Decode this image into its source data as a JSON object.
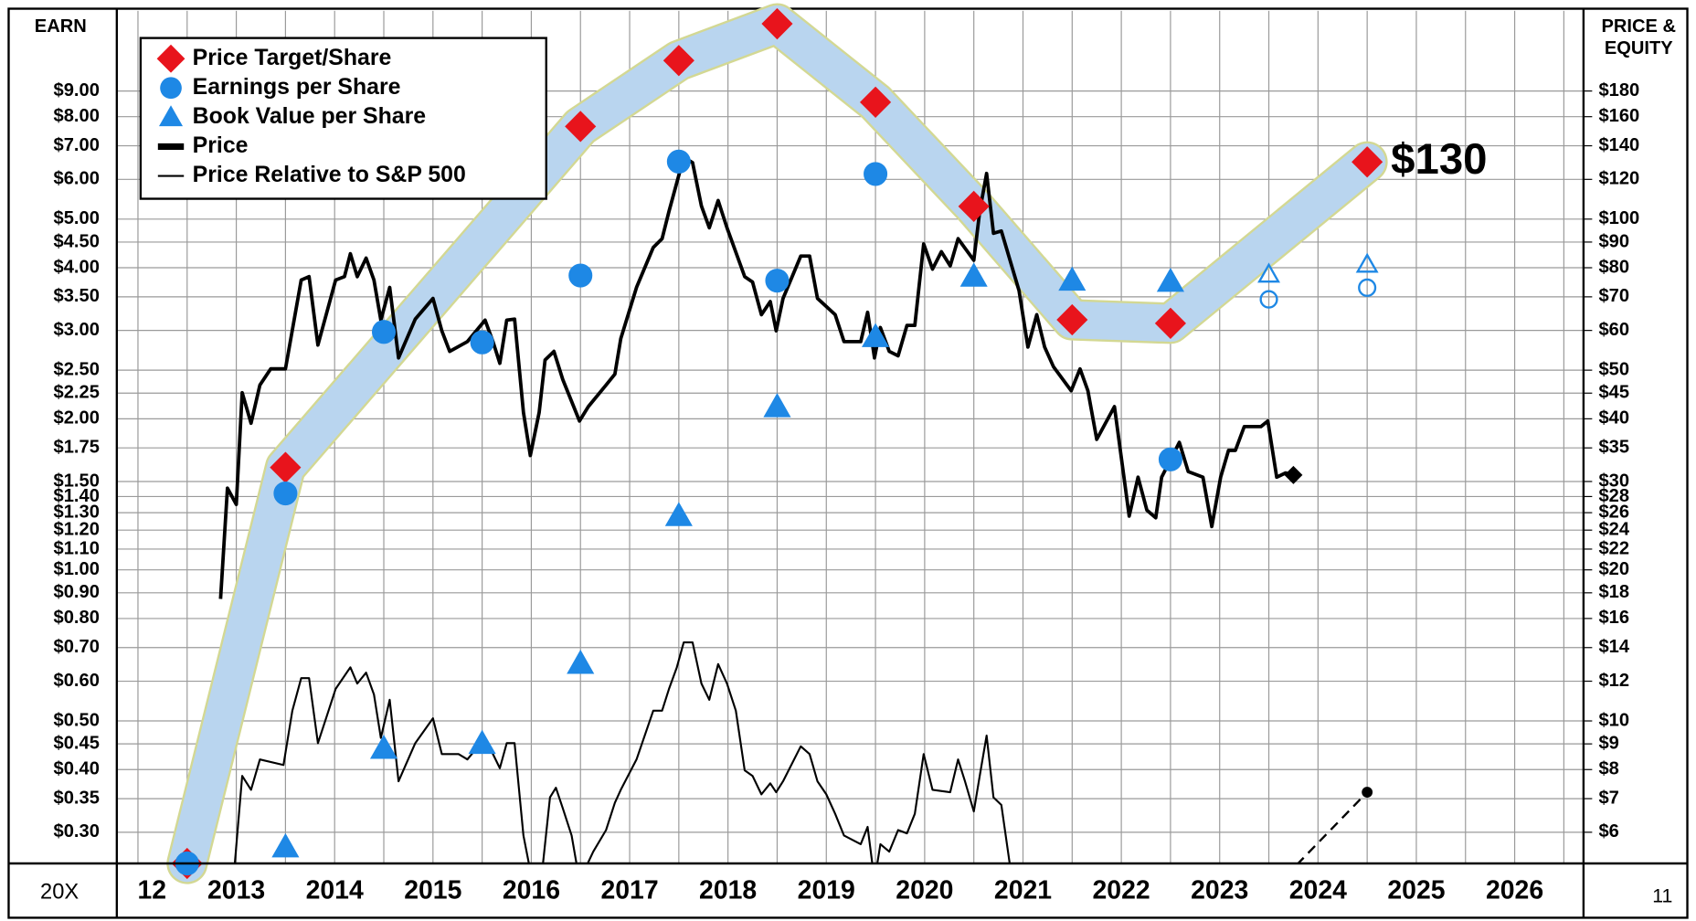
{
  "chart_data": {
    "type": "line",
    "left_axis_label": "EARN",
    "right_axis_label": [
      "PRICE &",
      "EQUITY"
    ],
    "corner_labels": [
      "20X",
      "11"
    ],
    "log_scale": true,
    "grid": true,
    "legend": "top-left",
    "xlim": [
      2012.285,
      2027.2
    ],
    "xticks": [
      2012.5,
      2013,
      2013.5,
      2014,
      2014.5,
      2015,
      2015.5,
      2016,
      2016.5,
      2017,
      2017.5,
      2018,
      2018.5,
      2019,
      2019.5,
      2020,
      2020.5,
      2021,
      2021.5,
      2022,
      2022.5,
      2023,
      2023.5,
      2024,
      2024.5,
      2025,
      2025.5,
      2026,
      2026.5,
      2027
    ],
    "x_labels": [
      "12",
      "2013",
      "2014",
      "2015",
      "2016",
      "2017",
      "2018",
      "2019",
      "2020",
      "2021",
      "2022",
      "2023",
      "2024",
      "2025",
      "2026"
    ],
    "ylim": [
      0.26,
      13
    ],
    "yticks": [
      {
        "value": 9,
        "label": "$9.00"
      },
      {
        "value": 8,
        "label": "$8.00"
      },
      {
        "value": 7,
        "label": "$7.00"
      },
      {
        "value": 6,
        "label": "$6.00"
      },
      {
        "value": 5,
        "label": "$5.00"
      },
      {
        "value": 4.5,
        "label": "$4.50"
      },
      {
        "value": 4,
        "label": "$4.00"
      },
      {
        "value": 3.5,
        "label": "$3.50"
      },
      {
        "value": 3,
        "label": "$3.00"
      },
      {
        "value": 2.5,
        "label": "$2.50"
      },
      {
        "value": 2.25,
        "label": "$2.25"
      },
      {
        "value": 2,
        "label": "$2.00"
      },
      {
        "value": 1.75,
        "label": "$1.75"
      },
      {
        "value": 1.5,
        "label": "$1.50"
      },
      {
        "value": 1.4,
        "label": "$1.40"
      },
      {
        "value": 1.3,
        "label": "$1.30"
      },
      {
        "value": 1.2,
        "label": "$1.20"
      },
      {
        "value": 1.1,
        "label": "$1.10"
      },
      {
        "value": 1,
        "label": "$1.00"
      },
      {
        "value": 0.9,
        "label": "$0.90"
      },
      {
        "value": 0.8,
        "label": "$0.80"
      },
      {
        "value": 0.7,
        "label": "$0.70"
      },
      {
        "value": 0.6,
        "label": "$0.60"
      },
      {
        "value": 0.5,
        "label": "$0.50"
      },
      {
        "value": 0.45,
        "label": "$0.45"
      },
      {
        "value": 0.4,
        "label": "$0.40"
      },
      {
        "value": 0.35,
        "label": "$0.35"
      },
      {
        "value": 0.3,
        "label": "$0.30"
      }
    ],
    "y2lim": [
      5.2,
      260
    ],
    "y2ticks": [
      {
        "value": 180,
        "label": "$180"
      },
      {
        "value": 160,
        "label": "$160"
      },
      {
        "value": 140,
        "label": "$140"
      },
      {
        "value": 120,
        "label": "$120"
      },
      {
        "value": 100,
        "label": "$100"
      },
      {
        "value": 90,
        "label": "$90"
      },
      {
        "value": 80,
        "label": "$80"
      },
      {
        "value": 70,
        "label": "$70"
      },
      {
        "value": 60,
        "label": "$60"
      },
      {
        "value": 50,
        "label": "$50"
      },
      {
        "value": 45,
        "label": "$45"
      },
      {
        "value": 40,
        "label": "$40"
      },
      {
        "value": 35,
        "label": "$35"
      },
      {
        "value": 30,
        "label": "$30"
      },
      {
        "value": 28,
        "label": "$28"
      },
      {
        "value": 26,
        "label": "$26"
      },
      {
        "value": 24,
        "label": "$24"
      },
      {
        "value": 22,
        "label": "$22"
      },
      {
        "value": 20,
        "label": "$20"
      },
      {
        "value": 18,
        "label": "$18"
      },
      {
        "value": 16,
        "label": "$16"
      },
      {
        "value": 14,
        "label": "$14"
      },
      {
        "value": 12,
        "label": "$12"
      },
      {
        "value": 10,
        "label": "$10"
      },
      {
        "value": 9,
        "label": "$9"
      },
      {
        "value": 8,
        "label": "$8"
      },
      {
        "value": 7,
        "label": "$7"
      },
      {
        "value": 6,
        "label": "$6"
      }
    ],
    "band": {
      "color": "#b9d5ef",
      "outline": "#d3d893"
    },
    "series": [
      {
        "name": "Price Target/Share",
        "marker": "diamond",
        "color": "#e8141c",
        "axis": "y2",
        "x": [
          2013,
          2014,
          2017,
          2018,
          2019,
          2020,
          2021,
          2022,
          2023,
          2025
        ],
        "values": [
          5.2,
          32,
          153,
          207,
          245,
          171,
          106,
          63,
          62,
          130
        ]
      },
      {
        "name": "Earnings per Share",
        "marker": "circle",
        "color": "#1e88e5",
        "x": [
          2013,
          2014,
          2015,
          2016,
          2017,
          2018,
          2019,
          2020,
          2023
        ],
        "values": [
          0.26,
          1.42,
          2.98,
          2.84,
          3.86,
          6.51,
          3.77,
          6.15,
          1.66
        ]
      },
      {
        "name": "Book Value per Share",
        "marker": "triangle",
        "color": "#1e88e5",
        "x": [
          2014,
          2015,
          2016,
          2017,
          2018,
          2019,
          2020,
          2021,
          2022,
          2023
        ],
        "values": [
          0.28,
          0.44,
          0.45,
          0.65,
          1.28,
          2.11,
          2.91,
          3.84,
          3.77,
          3.75
        ]
      },
      {
        "name": "Price",
        "marker": "thick-line",
        "color": "#000000",
        "axis": "y2",
        "x": [
          2013.34,
          2013.41,
          2013.5,
          2013.56,
          2013.65,
          2013.74,
          2013.85,
          2014.0,
          2014.16,
          2014.24,
          2014.33,
          2014.51,
          2014.6,
          2014.66,
          2014.73,
          2014.82,
          2014.9,
          2014.97,
          2015.06,
          2015.15,
          2015.32,
          2015.5,
          2015.59,
          2015.67,
          2015.85,
          2016.03,
          2016.11,
          2016.18,
          2016.25,
          2016.33,
          2016.42,
          2016.49,
          2016.58,
          2016.64,
          2016.73,
          2016.82,
          2016.99,
          2017.08,
          2017.26,
          2017.35,
          2017.41,
          2017.57,
          2017.74,
          2017.83,
          2017.9,
          2018.05,
          2018.14,
          2018.23,
          2018.31,
          2018.4,
          2018.49,
          2018.67,
          2018.75,
          2018.84,
          2018.93,
          2018.99,
          2019.06,
          2019.24,
          2019.33,
          2019.41,
          2019.59,
          2019.68,
          2019.85,
          2019.92,
          2019.99,
          2020.05,
          2020.14,
          2020.23,
          2020.32,
          2020.4,
          2020.49,
          2020.58,
          2020.67,
          2020.76,
          2020.84,
          2021.0,
          2021.06,
          2021.13,
          2021.2,
          2021.28,
          2021.46,
          2021.55,
          2021.64,
          2021.72,
          2021.81,
          2021.99,
          2022.08,
          2022.16,
          2022.25,
          2022.43,
          2022.58,
          2022.67,
          2022.76,
          2022.85,
          2022.91,
          2023.09,
          2023.18,
          2023.33,
          2023.42,
          2023.51,
          2023.59,
          2023.66,
          2023.75,
          2023.92,
          2023.99,
          2024.08,
          2024.17,
          2024.25
        ],
        "values": [
          17.5,
          29.1,
          27.0,
          45.1,
          39.2,
          46.7,
          50.3,
          50.3,
          75.6,
          76.8,
          56.1,
          75.6,
          76.8,
          85.3,
          76.8,
          83.6,
          75.6,
          62.9,
          73.1,
          52.9,
          63.2,
          69.5,
          59.9,
          54.5,
          57.0,
          62.9,
          57.0,
          51.6,
          62.9,
          63.2,
          41.2,
          33.8,
          41.2,
          52.4,
          54.5,
          47.9,
          39.6,
          42.3,
          46.7,
          49.1,
          57.8,
          73.1,
          87.8,
          91.4,
          103.6,
          132.8,
          129.6,
          106.2,
          96.1,
          108.9,
          96.1,
          76.8,
          74.9,
          64.5,
          68.5,
          59.9,
          69.5,
          84.4,
          84.4,
          69.5,
          64.5,
          57.0,
          57.0,
          65.2,
          52.9,
          60.8,
          54.5,
          53.4,
          61.4,
          61.4,
          89.2,
          79.5,
          86.1,
          80.7,
          91.4,
          82.8,
          103.6,
          123.3,
          93.7,
          94.7,
          72.0,
          55.6,
          64.5,
          55.6,
          50.8,
          45.5,
          50.3,
          45.5,
          36.4,
          42.3,
          25.6,
          30.6,
          26.3,
          25.4,
          30.6,
          35.9,
          31.4,
          30.6,
          24.4,
          30.6,
          34.6,
          34.6,
          38.6,
          38.6,
          39.6,
          30.6,
          31.2,
          30.9
        ]
      },
      {
        "name": "Price Relative to S&P 500",
        "marker": "thin-line",
        "color": "#000000",
        "axis": "y2",
        "x": [
          2013.47,
          2013.56,
          2013.65,
          2013.74,
          2013.98,
          2014.07,
          2014.16,
          2014.24,
          2014.33,
          2014.42,
          2014.51,
          2014.66,
          2014.73,
          2014.82,
          2014.9,
          2014.97,
          2015.06,
          2015.15,
          2015.32,
          2015.5,
          2015.59,
          2015.76,
          2015.85,
          2016.03,
          2016.18,
          2016.25,
          2016.33,
          2016.42,
          2016.51,
          2016.6,
          2016.69,
          2016.75,
          2016.82,
          2016.91,
          2016.99,
          2017.13,
          2017.26,
          2017.35,
          2017.41,
          2017.57,
          2017.74,
          2017.83,
          2017.9,
          2017.98,
          2018.05,
          2018.14,
          2018.23,
          2018.31,
          2018.4,
          2018.49,
          2018.58,
          2018.67,
          2018.75,
          2018.84,
          2018.93,
          2018.99,
          2019.06,
          2019.24,
          2019.33,
          2019.41,
          2019.5,
          2019.59,
          2019.68,
          2019.85,
          2019.92,
          2019.99,
          2020.05,
          2020.14,
          2020.23,
          2020.32,
          2020.4,
          2020.49,
          2020.58,
          2020.76,
          2020.84,
          2020.91,
          2021.0,
          2021.06,
          2021.13,
          2021.2,
          2021.28,
          2021.39
        ],
        "values": [
          4.8,
          7.77,
          7.29,
          8.38,
          8.17,
          10.48,
          12.17,
          12.17,
          9.03,
          10.22,
          11.58,
          12.79,
          11.87,
          12.48,
          11.29,
          9.25,
          11.02,
          7.58,
          9.03,
          10.12,
          8.59,
          8.59,
          8.38,
          9.25,
          8.05,
          9.03,
          9.03,
          5.91,
          4.8,
          4.8,
          7.04,
          7.36,
          6.7,
          5.91,
          4.8,
          5.49,
          6.06,
          6.87,
          7.29,
          8.38,
          10.48,
          10.48,
          11.58,
          12.79,
          14.34,
          14.34,
          11.87,
          11.02,
          12.98,
          11.87,
          10.48,
          7.97,
          7.77,
          7.14,
          7.51,
          7.21,
          7.58,
          8.9,
          8.59,
          7.58,
          7.14,
          6.53,
          5.91,
          5.68,
          6.15,
          4.8,
          5.68,
          5.49,
          6.06,
          5.97,
          6.53,
          8.59,
          7.29,
          7.21,
          8.38,
          7.58,
          6.6,
          7.77,
          9.35,
          7.04,
          6.8,
          4.8
        ]
      }
    ],
    "estimates": [
      {
        "marker": "circle",
        "color": "#1e88e5",
        "x": [
          2024,
          2025
        ],
        "values": [
          3.46,
          3.65
        ]
      },
      {
        "marker": "triangle",
        "color": "#1e88e5",
        "x": [
          2024,
          2025
        ],
        "values": [
          3.88,
          4.06
        ]
      }
    ],
    "relative_projection": {
      "color": "#000000",
      "axis": "y2",
      "x": [
        2024.17,
        2025
      ],
      "values": [
        4.9,
        7.21
      ]
    },
    "annotations": [
      {
        "text": "$130",
        "color": "#e8141c"
      }
    ]
  }
}
